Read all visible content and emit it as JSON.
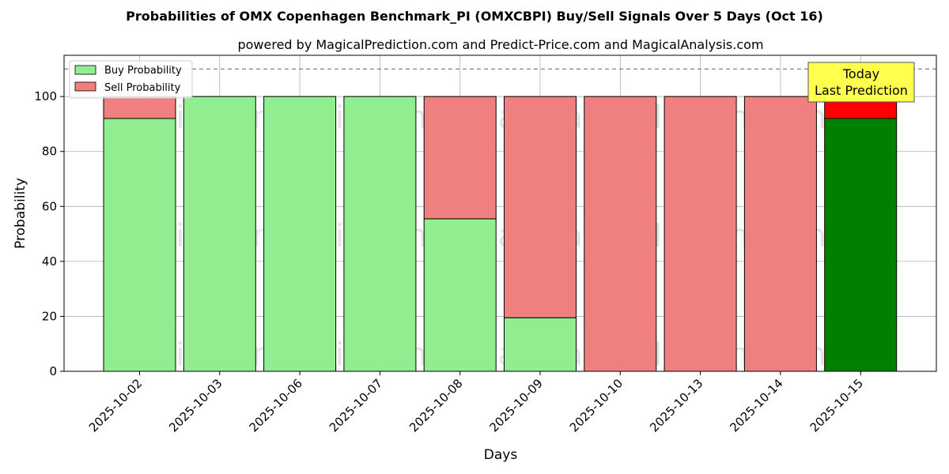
{
  "chart_data": {
    "type": "bar",
    "stacked": true,
    "title": "Probabilities of OMX Copenhagen Benchmark_PI (OMXCBPI) Buy/Sell Signals Over 5 Days (Oct 16)",
    "subtitle": "powered by MagicalPrediction.com and Predict-Price.com and MagicalAnalysis.com",
    "xlabel": "Days",
    "ylabel": "Probability",
    "ylim": [
      0,
      115
    ],
    "yticks": [
      0,
      20,
      40,
      60,
      80,
      100
    ],
    "reference_line": 110,
    "grid": true,
    "legend_position": "top-left",
    "categories": [
      "2025-10-02",
      "2025-10-03",
      "2025-10-06",
      "2025-10-07",
      "2025-10-08",
      "2025-10-09",
      "2025-10-10",
      "2025-10-13",
      "2025-10-14",
      "2025-10-15"
    ],
    "series": [
      {
        "name": "Buy Probability",
        "color": "#90ee90",
        "values": [
          92,
          100,
          100,
          100,
          55.5,
          19.5,
          0,
          0,
          0,
          92
        ]
      },
      {
        "name": "Sell Probability",
        "color": "#f08080",
        "values": [
          8,
          0,
          0,
          0,
          44.5,
          80.5,
          100,
          100,
          100,
          8
        ]
      }
    ],
    "highlight": {
      "index": 9,
      "buy_color": "#008000",
      "sell_color": "#ff0000"
    },
    "annotation": {
      "lines": [
        "Today",
        "Last Prediction"
      ],
      "background": "#ffff4d"
    },
    "watermarks": [
      "MagicalAnalysis.com",
      "MagicalPrediction.com"
    ]
  }
}
